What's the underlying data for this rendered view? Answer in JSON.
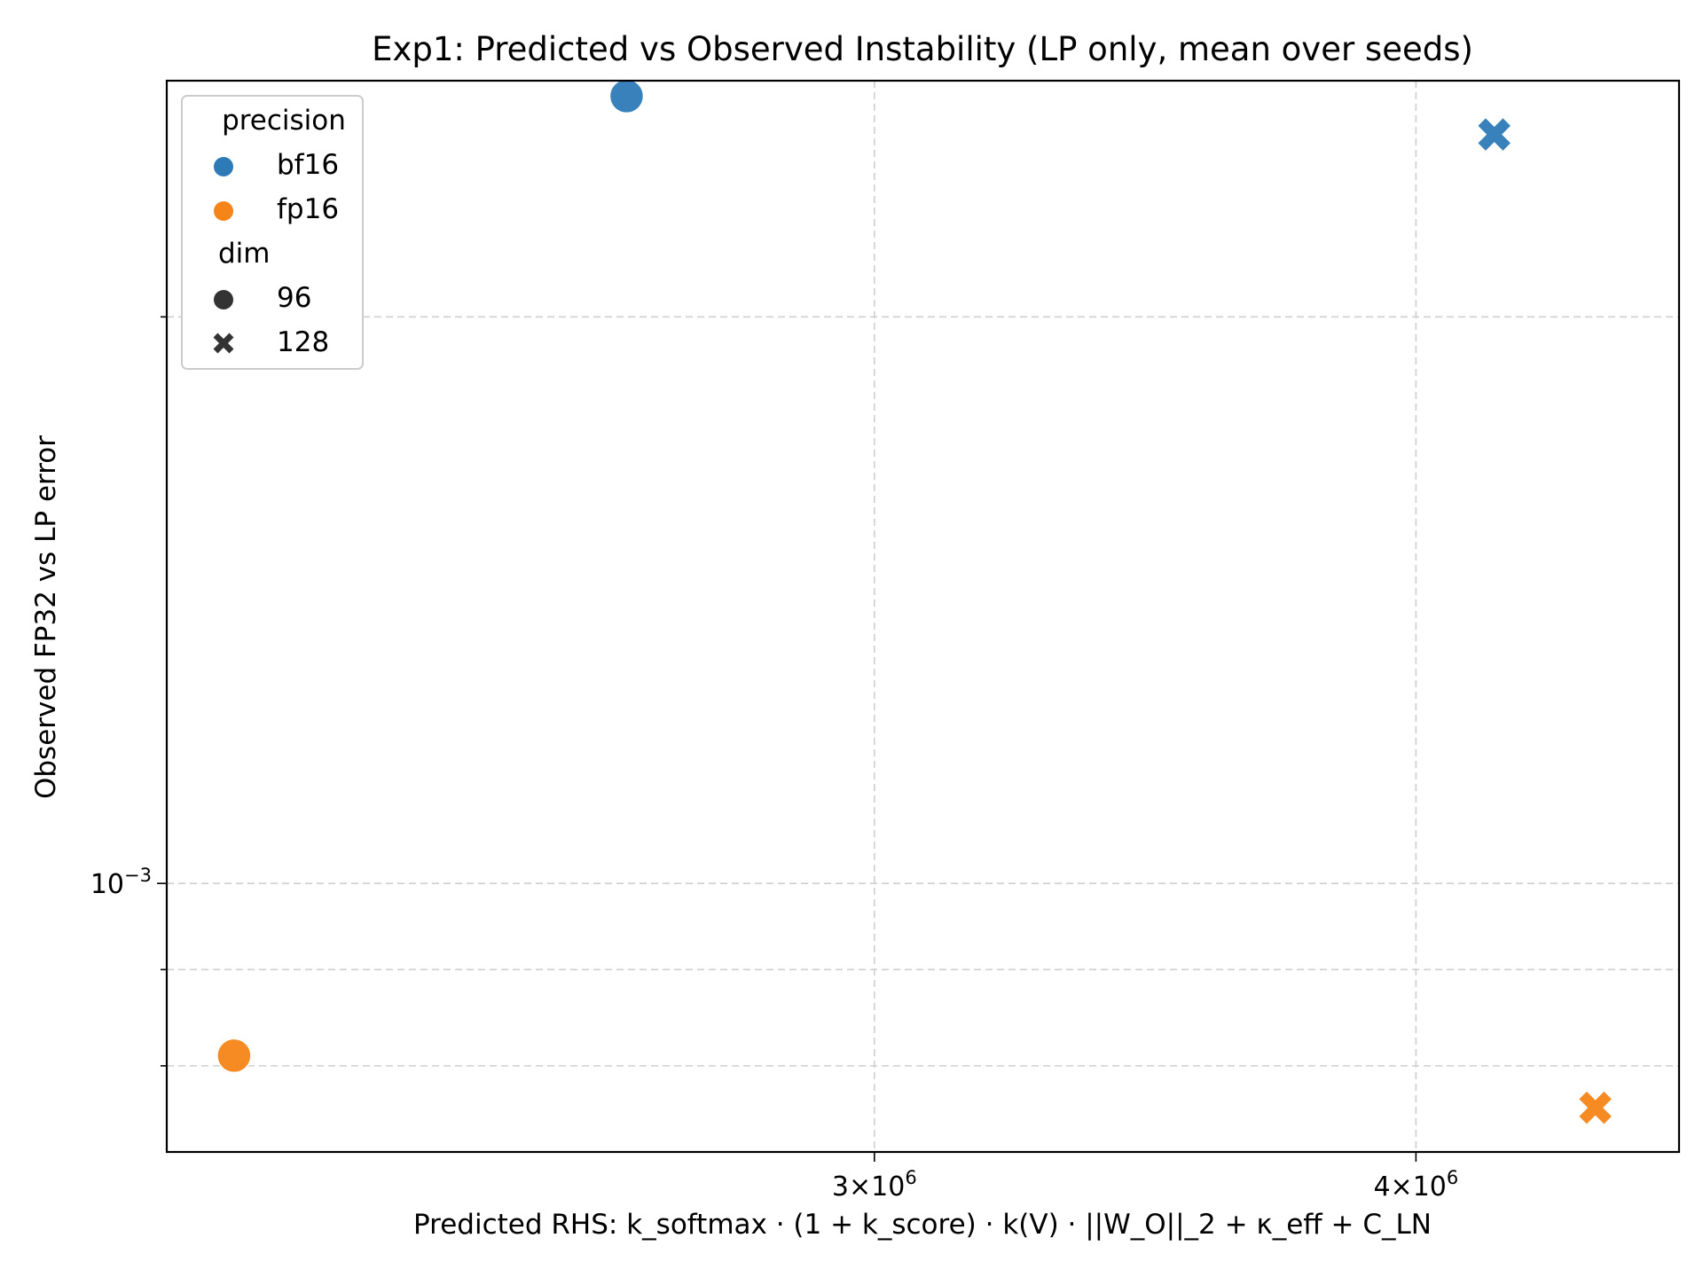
{
  "chart_data": {
    "type": "scatter",
    "title": "Exp1: Predicted vs Observed Instability (LP only, mean over seeds)",
    "xlabel": "Predicted RHS: k_softmax · (1 + k_score) · k(V) · ||W_O||_2  +  κ_eff  +  C_LN",
    "ylabel": "Observed FP32 vs LP error",
    "xscale": "log",
    "yscale": "log",
    "xlim": [
      2060000,
      4600000
    ],
    "ylim": [
      0.00072,
      0.00267
    ],
    "x_ticks": [
      {
        "value": 3000000,
        "mantissa": "3",
        "base": "10",
        "exp": "6"
      },
      {
        "value": 4000000,
        "mantissa": "4",
        "base": "10",
        "exp": "6"
      }
    ],
    "y_ticks": [
      {
        "value": 0.001,
        "base": "10",
        "exp": "−3"
      }
    ],
    "y_minor_ticks": [
      0.0008,
      0.0009,
      0.002
    ],
    "grid": true,
    "legend_position": "upper left",
    "legend": {
      "hue_title": "precision",
      "hue_items": [
        {
          "label": "bf16",
          "color": "#2e7ab6"
        },
        {
          "label": "fp16",
          "color": "#f58518"
        }
      ],
      "style_title": "dim",
      "style_items": [
        {
          "label": "96",
          "marker": "circle"
        },
        {
          "label": "128",
          "marker": "x"
        }
      ]
    },
    "series": [
      {
        "precision": "bf16",
        "dim": "96",
        "marker": "circle",
        "color": "#2e7ab6",
        "x": 2630000,
        "y": 0.00262
      },
      {
        "precision": "bf16",
        "dim": "128",
        "marker": "x",
        "color": "#2e7ab6",
        "x": 4170000,
        "y": 0.0025
      },
      {
        "precision": "fp16",
        "dim": "96",
        "marker": "circle",
        "color": "#f58518",
        "x": 2135000,
        "y": 0.00081
      },
      {
        "precision": "fp16",
        "dim": "128",
        "marker": "x",
        "color": "#f58518",
        "x": 4400000,
        "y": 0.00076
      }
    ]
  }
}
